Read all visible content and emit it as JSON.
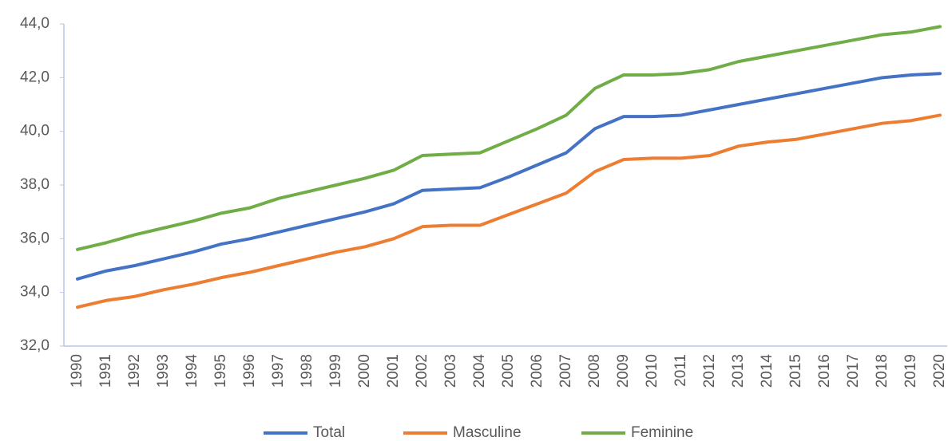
{
  "chart_data": {
    "type": "line",
    "categories": [
      "1990",
      "1991",
      "1992",
      "1993",
      "1994",
      "1995",
      "1996",
      "1997",
      "1998",
      "1999",
      "2000",
      "2001",
      "2002",
      "2003",
      "2004",
      "2005",
      "2006",
      "2007",
      "2008",
      "2009",
      "2010",
      "2011",
      "2012",
      "2013",
      "2014",
      "2015",
      "2016",
      "2017",
      "2018",
      "2019",
      "2020"
    ],
    "series": [
      {
        "name": "Total",
        "color": "#4472c4",
        "values": [
          34.5,
          34.8,
          35.0,
          35.25,
          35.5,
          35.8,
          36.0,
          36.25,
          36.5,
          36.75,
          37.0,
          37.3,
          37.8,
          37.85,
          37.9,
          38.3,
          38.75,
          39.2,
          40.1,
          40.55,
          40.55,
          40.6,
          40.8,
          41.0,
          41.2,
          41.4,
          41.6,
          41.8,
          42.0,
          42.1,
          42.15
        ]
      },
      {
        "name": "Masculine",
        "color": "#ed7d31",
        "values": [
          33.45,
          33.7,
          33.85,
          34.1,
          34.3,
          34.55,
          34.75,
          35.0,
          35.25,
          35.5,
          35.7,
          36.0,
          36.45,
          36.5,
          36.5,
          36.9,
          37.3,
          37.7,
          38.5,
          38.95,
          39.0,
          39.0,
          39.1,
          39.45,
          39.6,
          39.7,
          39.9,
          40.1,
          40.3,
          40.4,
          40.6
        ]
      },
      {
        "name": "Feminine",
        "color": "#70ad47",
        "values": [
          35.6,
          35.85,
          36.15,
          36.4,
          36.65,
          36.95,
          37.15,
          37.5,
          37.75,
          38.0,
          38.25,
          38.55,
          39.1,
          39.15,
          39.2,
          39.65,
          40.1,
          40.6,
          41.6,
          42.1,
          42.1,
          42.15,
          42.3,
          42.6,
          42.8,
          43.0,
          43.2,
          43.4,
          43.6,
          43.7,
          43.9
        ]
      }
    ],
    "ylim": [
      32,
      44
    ],
    "yticks": [
      {
        "value": 32,
        "label": "32,0"
      },
      {
        "value": 34,
        "label": "34,0"
      },
      {
        "value": 36,
        "label": "36,0"
      },
      {
        "value": 38,
        "label": "38,0"
      },
      {
        "value": 40,
        "label": "40,0"
      },
      {
        "value": 42,
        "label": "42,0"
      },
      {
        "value": 44,
        "label": "44,0"
      }
    ],
    "legend": "bottom"
  }
}
